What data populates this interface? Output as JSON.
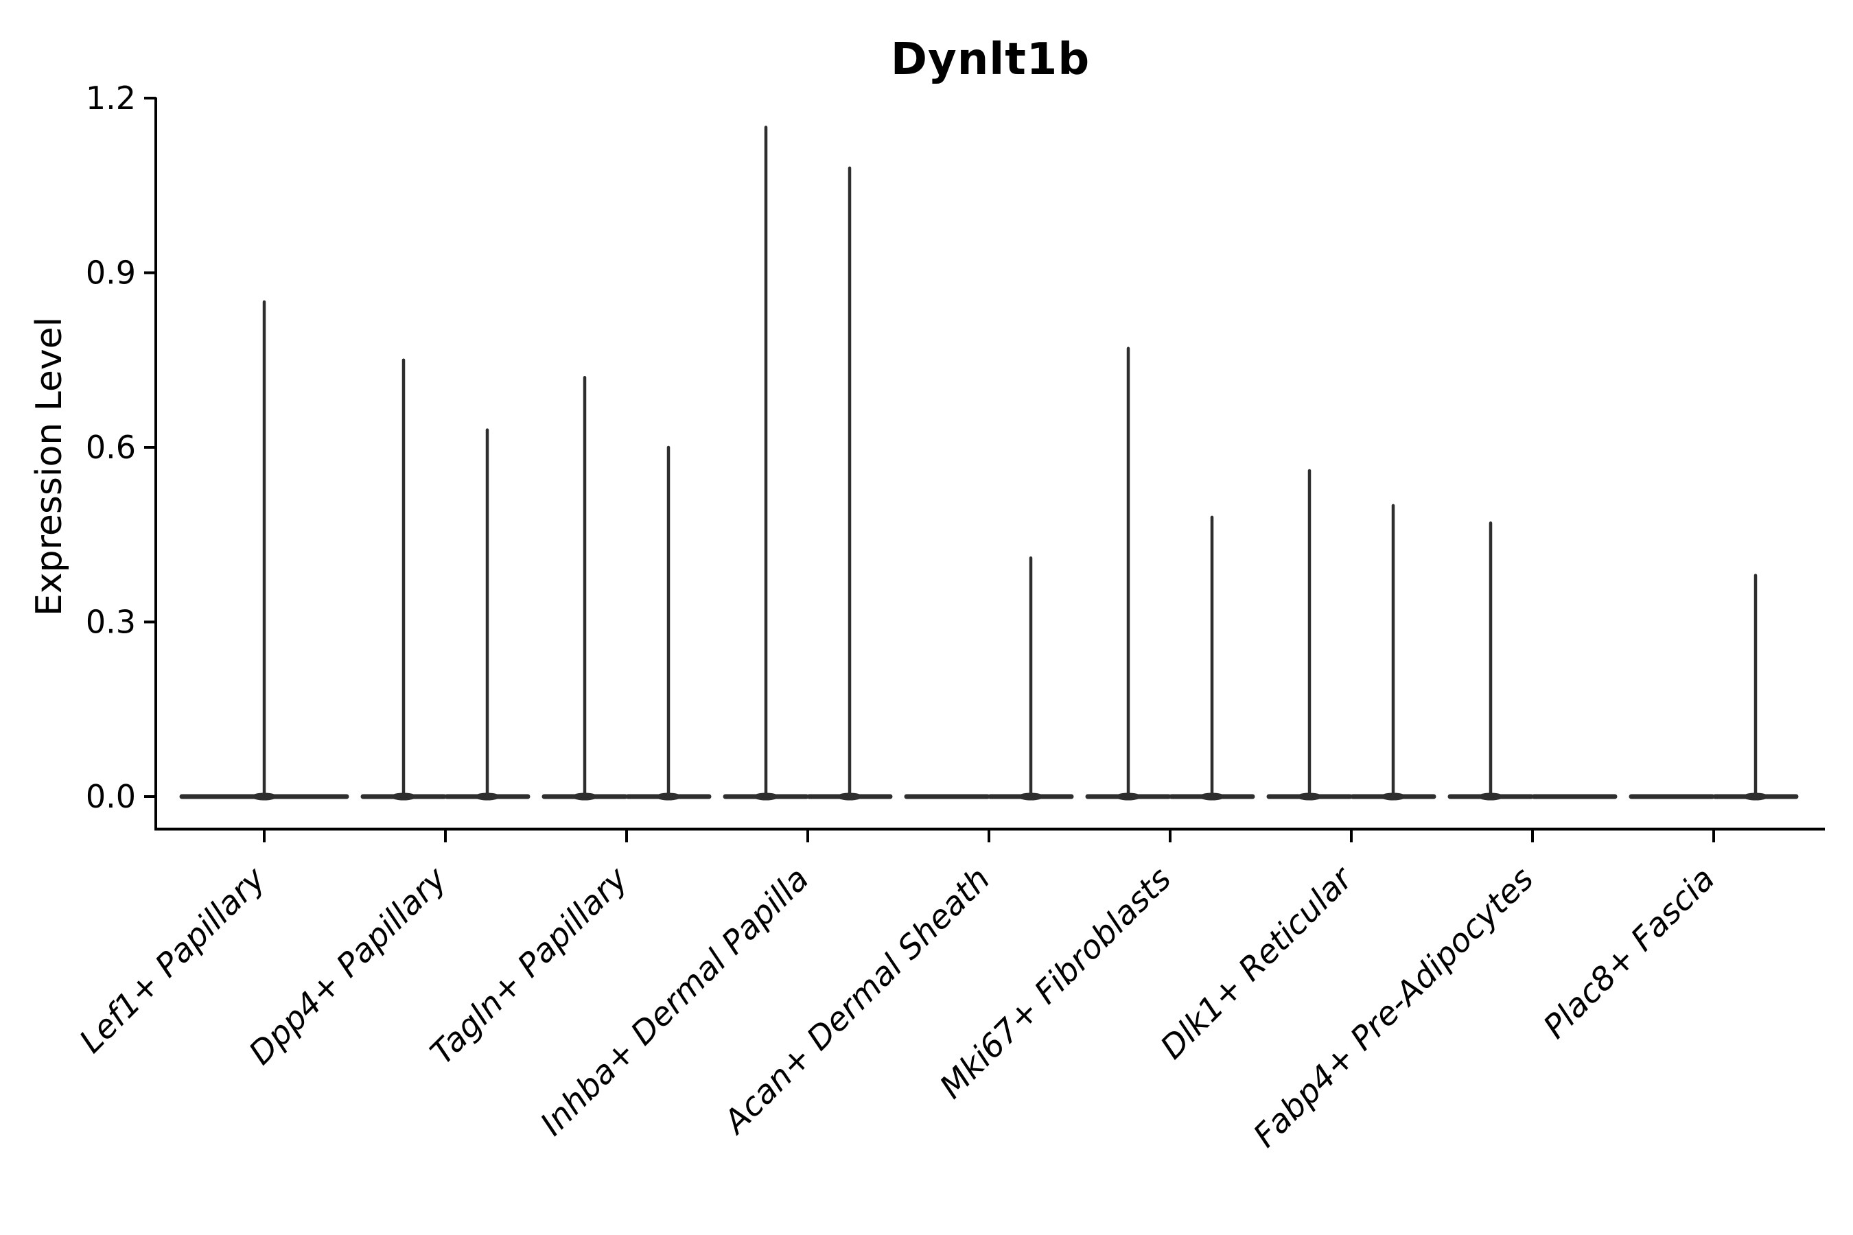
{
  "figure": {
    "background": "#ffffff"
  },
  "chart_data": {
    "type": "violin",
    "title": "Dynlt1b",
    "ylabel": "Expression Level",
    "xlabel": "",
    "grid": false,
    "legend": "none",
    "ytick_labels": [
      "0.0",
      "0.3",
      "0.6",
      "0.9",
      "1.2"
    ],
    "ytick_values": [
      0.0,
      0.3,
      0.6,
      0.9,
      1.2
    ],
    "ylim": [
      -0.056,
      1.2
    ],
    "categories": [
      "Lef1+ Papillary",
      "Dpp4+ Papillary",
      "Tagln+ Papillary",
      "Inhba+ Dermal Papilla",
      "Acan+ Dermal Sheath",
      "Mki67+ Fibroblasts",
      "Dlk1+ Reticular",
      "Fabp4+ Pre-Adipocytes",
      "Plac8+ Fascia"
    ],
    "violin_description": "Needle-shaped violins: wide flat base at expression 0 with a thin spike up to the max expression value. Categories contain either one centered violin or two side-by-side (dodged) violins; dodged violins with max 0 are completely flat.",
    "violins": [
      {
        "category": "Lef1+ Papillary",
        "groups": [
          {
            "position": "center",
            "max": 0.85
          }
        ]
      },
      {
        "category": "Dpp4+ Papillary",
        "groups": [
          {
            "position": "left",
            "max": 0.75
          },
          {
            "position": "right",
            "max": 0.63
          }
        ]
      },
      {
        "category": "Tagln+ Papillary",
        "groups": [
          {
            "position": "left",
            "max": 0.72
          },
          {
            "position": "right",
            "max": 0.6
          }
        ]
      },
      {
        "category": "Inhba+ Dermal Papilla",
        "groups": [
          {
            "position": "left",
            "max": 1.15
          },
          {
            "position": "right",
            "max": 1.08
          }
        ]
      },
      {
        "category": "Acan+ Dermal Sheath",
        "groups": [
          {
            "position": "left",
            "max": 0
          },
          {
            "position": "right",
            "max": 0.41
          }
        ]
      },
      {
        "category": "Mki67+ Fibroblasts",
        "groups": [
          {
            "position": "left",
            "max": 0.77
          },
          {
            "position": "right",
            "max": 0.48
          }
        ]
      },
      {
        "category": "Dlk1+ Reticular",
        "groups": [
          {
            "position": "left",
            "max": 0.56
          },
          {
            "position": "right",
            "max": 0.5
          }
        ]
      },
      {
        "category": "Fabp4+ Pre-Adipocytes",
        "groups": [
          {
            "position": "left",
            "max": 0.47
          },
          {
            "position": "right",
            "max": 0
          }
        ]
      },
      {
        "category": "Plac8+ Fascia",
        "groups": [
          {
            "position": "left",
            "max": 0
          },
          {
            "position": "right",
            "max": 0.38
          }
        ]
      }
    ],
    "colors": {
      "violin": "#2e2e2e",
      "axis": "#000000",
      "text": "#000000",
      "background": "#ffffff"
    }
  }
}
